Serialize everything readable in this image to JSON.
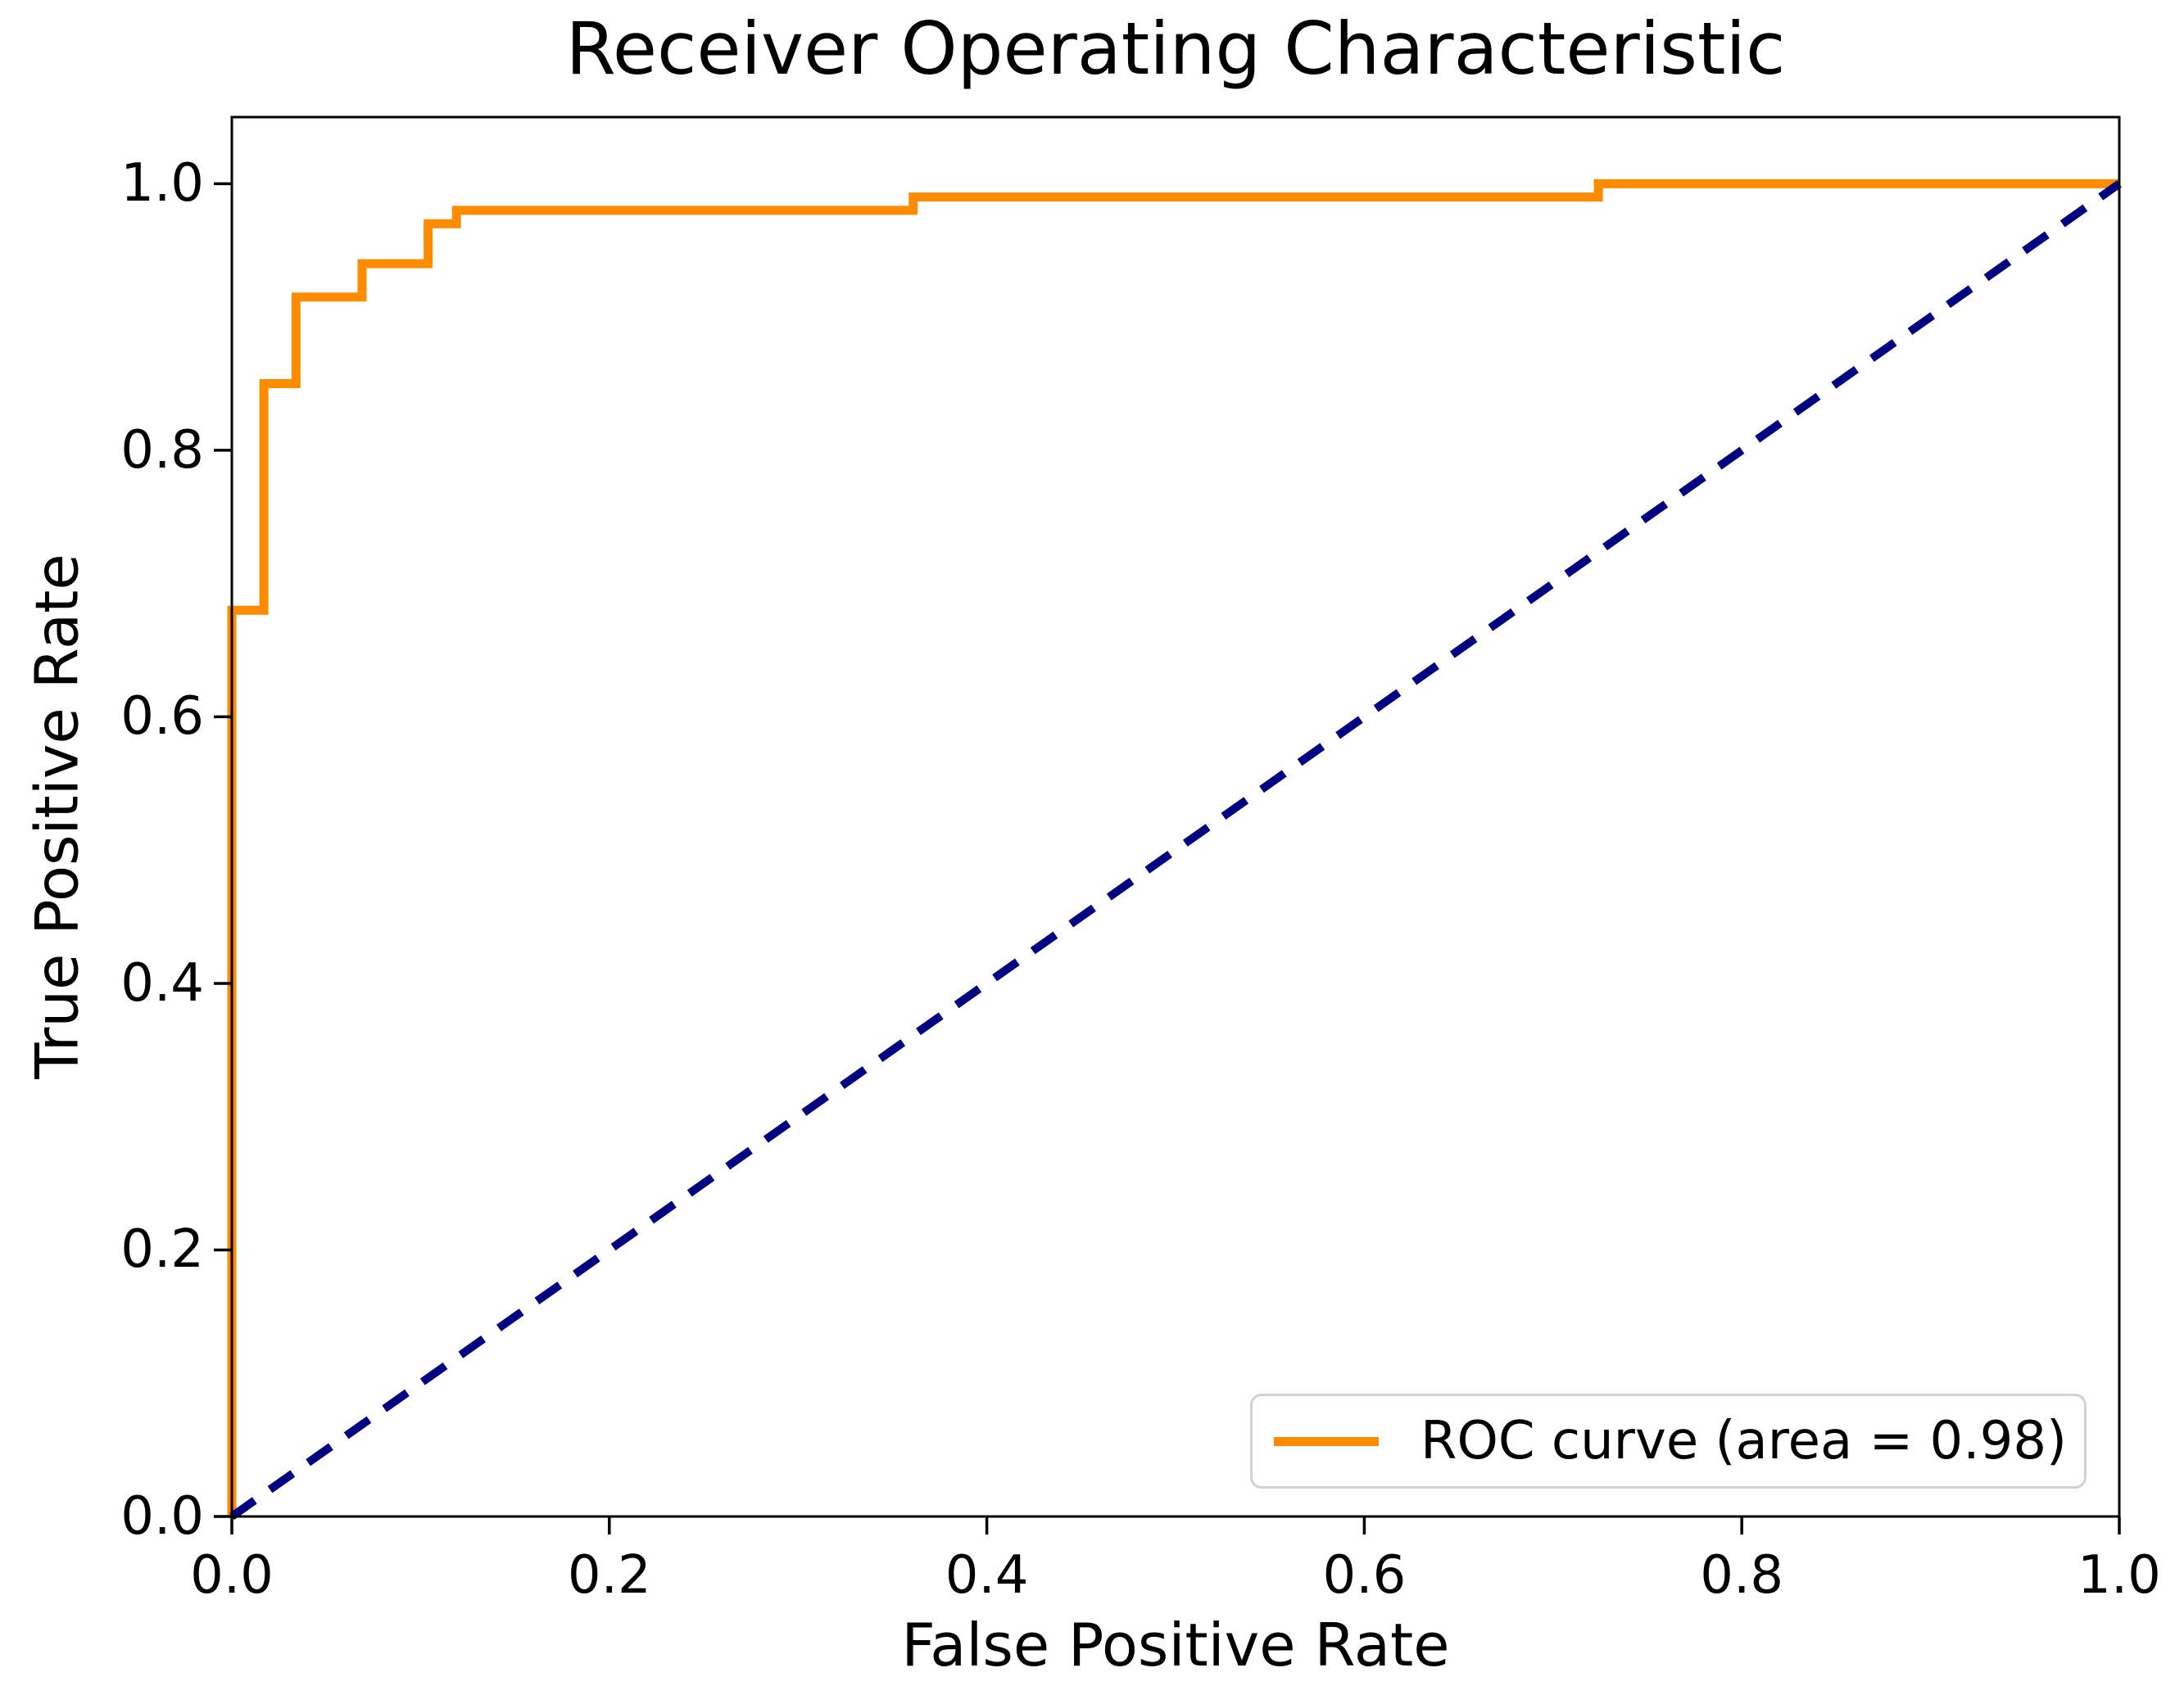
{
  "title": "Receiver Operating Characteristic",
  "axes": {
    "x": {
      "label": "False Positive Rate",
      "ticks": [
        {
          "value": 0.0,
          "label": "0.0"
        },
        {
          "value": 0.2,
          "label": "0.2"
        },
        {
          "value": 0.4,
          "label": "0.4"
        },
        {
          "value": 0.6,
          "label": "0.6"
        },
        {
          "value": 0.8,
          "label": "0.8"
        },
        {
          "value": 1.0,
          "label": "1.0"
        }
      ]
    },
    "y": {
      "label": "True Positive Rate",
      "ticks": [
        {
          "value": 0.0,
          "label": "0.0"
        },
        {
          "value": 0.2,
          "label": "0.2"
        },
        {
          "value": 0.4,
          "label": "0.4"
        },
        {
          "value": 0.6,
          "label": "0.6"
        },
        {
          "value": 0.8,
          "label": "0.8"
        },
        {
          "value": 1.0,
          "label": "1.0"
        }
      ]
    }
  },
  "legend": {
    "position": "lower right",
    "entries": [
      {
        "label": "ROC curve (area = 0.98)",
        "color": "#ff8c00"
      }
    ]
  },
  "colors": {
    "roc_curve": "#ff8c00",
    "chance_line": "#000080",
    "spine": "#000000",
    "text": "#000000",
    "legend_border": "#d2d2d2",
    "background": "#ffffff"
  },
  "chart_data": {
    "type": "line",
    "title": "Receiver Operating Characteristic",
    "xlabel": "False Positive Rate",
    "ylabel": "True Positive Rate",
    "xlim": [
      0.0,
      1.0
    ],
    "ylim": [
      0.0,
      1.05
    ],
    "grid": false,
    "legend_position": "lower right",
    "auc": 0.98,
    "series": [
      {
        "name": "ROC curve (area = 0.98)",
        "color": "#ff8c00",
        "style": "solid",
        "drawstyle": "steps",
        "points": [
          [
            0.0,
            0.0
          ],
          [
            0.0,
            0.68
          ],
          [
            0.017,
            0.68
          ],
          [
            0.017,
            0.85
          ],
          [
            0.034,
            0.85
          ],
          [
            0.034,
            0.915
          ],
          [
            0.069,
            0.915
          ],
          [
            0.069,
            0.94
          ],
          [
            0.104,
            0.94
          ],
          [
            0.104,
            0.97
          ],
          [
            0.119,
            0.97
          ],
          [
            0.119,
            0.98
          ],
          [
            0.361,
            0.98
          ],
          [
            0.361,
            0.99
          ],
          [
            0.724,
            0.99
          ],
          [
            0.724,
            1.0
          ],
          [
            1.0,
            1.0
          ]
        ]
      },
      {
        "name": "random-chance-diagonal",
        "color": "#000080",
        "style": "dashed",
        "points": [
          [
            0.0,
            0.0
          ],
          [
            1.0,
            1.0
          ]
        ]
      }
    ]
  }
}
